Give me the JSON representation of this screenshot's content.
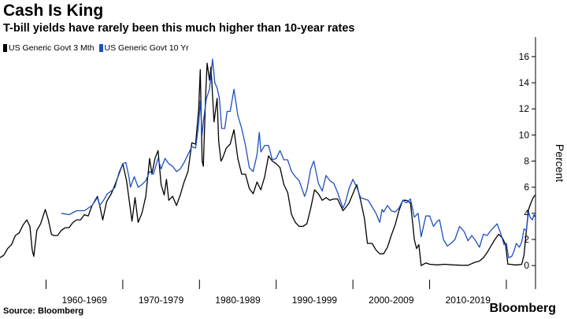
{
  "title": "Cash Is King",
  "subtitle": "T-bill yields have rarely been this much higher than 10-year rates",
  "source": "Source: Bloomberg",
  "brand": "Bloomberg",
  "chart_data": {
    "type": "line",
    "title": "Cash Is King",
    "ylabel": "Percent",
    "ylim": [
      -1.8,
      17.5
    ],
    "xlim": [
      1954.0,
      2023.8
    ],
    "yticks": [
      0,
      2,
      4,
      6,
      8,
      10,
      12,
      14,
      16
    ],
    "xtick_labels": [
      "1960-1969",
      "1970-1979",
      "1980-1989",
      "1990-1999",
      "2000-2009",
      "2010-2019"
    ],
    "xtick_dividers": [
      1960,
      1970,
      1980,
      1990,
      2000,
      2010,
      2020
    ],
    "grid": false,
    "legend_position": "top-left",
    "series": [
      {
        "name": "US Generic Govt 3 Mth",
        "color": "#000000",
        "points": [
          [
            1954.0,
            0.6
          ],
          [
            1954.5,
            0.8
          ],
          [
            1955.0,
            1.3
          ],
          [
            1955.5,
            1.6
          ],
          [
            1956.0,
            2.3
          ],
          [
            1956.5,
            2.5
          ],
          [
            1957.0,
            3.1
          ],
          [
            1957.5,
            3.5
          ],
          [
            1957.9,
            3.0
          ],
          [
            1958.2,
            1.2
          ],
          [
            1958.4,
            0.7
          ],
          [
            1958.8,
            2.7
          ],
          [
            1959.3,
            3.2
          ],
          [
            1959.9,
            4.3
          ],
          [
            1960.3,
            3.5
          ],
          [
            1960.7,
            2.4
          ],
          [
            1961.0,
            2.3
          ],
          [
            1961.5,
            2.3
          ],
          [
            1962.0,
            2.7
          ],
          [
            1962.5,
            2.9
          ],
          [
            1963.0,
            2.9
          ],
          [
            1963.5,
            3.3
          ],
          [
            1964.0,
            3.5
          ],
          [
            1964.5,
            3.5
          ],
          [
            1965.0,
            3.9
          ],
          [
            1965.5,
            3.8
          ],
          [
            1966.0,
            4.6
          ],
          [
            1966.7,
            5.3
          ],
          [
            1967.0,
            4.6
          ],
          [
            1967.4,
            3.5
          ],
          [
            1967.9,
            4.9
          ],
          [
            1968.5,
            5.5
          ],
          [
            1969.0,
            6.2
          ],
          [
            1969.5,
            7.0
          ],
          [
            1970.0,
            7.8
          ],
          [
            1970.5,
            6.5
          ],
          [
            1971.0,
            4.3
          ],
          [
            1971.2,
            3.4
          ],
          [
            1971.6,
            5.2
          ],
          [
            1972.0,
            3.3
          ],
          [
            1972.5,
            4.0
          ],
          [
            1973.0,
            5.3
          ],
          [
            1973.5,
            8.2
          ],
          [
            1973.8,
            7.0
          ],
          [
            1974.2,
            8.2
          ],
          [
            1974.6,
            8.8
          ],
          [
            1975.0,
            6.2
          ],
          [
            1975.4,
            5.4
          ],
          [
            1975.7,
            6.6
          ],
          [
            1976.0,
            5.0
          ],
          [
            1976.5,
            5.3
          ],
          [
            1977.0,
            4.6
          ],
          [
            1977.5,
            5.4
          ],
          [
            1978.0,
            6.4
          ],
          [
            1978.5,
            7.2
          ],
          [
            1979.0,
            9.4
          ],
          [
            1979.5,
            9.3
          ],
          [
            1979.9,
            12.0
          ],
          [
            1980.1,
            15.0
          ],
          [
            1980.35,
            8.0
          ],
          [
            1980.5,
            7.6
          ],
          [
            1980.8,
            13.0
          ],
          [
            1981.0,
            15.5
          ],
          [
            1981.3,
            14.2
          ],
          [
            1981.5,
            15.2
          ],
          [
            1981.9,
            11.0
          ],
          [
            1982.3,
            12.8
          ],
          [
            1982.5,
            9.5
          ],
          [
            1982.8,
            8.0
          ],
          [
            1983.0,
            8.2
          ],
          [
            1983.5,
            9.0
          ],
          [
            1984.0,
            9.3
          ],
          [
            1984.5,
            10.4
          ],
          [
            1985.0,
            8.2
          ],
          [
            1985.5,
            7.0
          ],
          [
            1986.0,
            7.0
          ],
          [
            1986.5,
            5.9
          ],
          [
            1987.0,
            5.5
          ],
          [
            1987.5,
            6.4
          ],
          [
            1988.0,
            5.8
          ],
          [
            1988.5,
            6.8
          ],
          [
            1989.0,
            8.4
          ],
          [
            1989.5,
            8.0
          ],
          [
            1990.0,
            7.8
          ],
          [
            1990.5,
            7.5
          ],
          [
            1991.0,
            6.2
          ],
          [
            1991.5,
            5.6
          ],
          [
            1992.0,
            3.9
          ],
          [
            1992.5,
            3.3
          ],
          [
            1993.0,
            3.0
          ],
          [
            1993.5,
            3.0
          ],
          [
            1994.0,
            3.2
          ],
          [
            1994.5,
            4.4
          ],
          [
            1995.0,
            5.8
          ],
          [
            1995.5,
            5.5
          ],
          [
            1996.0,
            5.0
          ],
          [
            1996.5,
            5.2
          ],
          [
            1997.0,
            5.0
          ],
          [
            1997.5,
            5.1
          ],
          [
            1998.0,
            5.1
          ],
          [
            1998.7,
            4.2
          ],
          [
            1999.0,
            4.4
          ],
          [
            1999.5,
            4.8
          ],
          [
            2000.0,
            5.5
          ],
          [
            2000.5,
            6.2
          ],
          [
            2001.0,
            5.0
          ],
          [
            2001.5,
            3.6
          ],
          [
            2001.9,
            1.7
          ],
          [
            2002.5,
            1.7
          ],
          [
            2003.0,
            1.2
          ],
          [
            2003.5,
            0.9
          ],
          [
            2004.0,
            0.9
          ],
          [
            2004.5,
            1.4
          ],
          [
            2005.0,
            2.3
          ],
          [
            2005.5,
            3.1
          ],
          [
            2006.0,
            4.2
          ],
          [
            2006.5,
            5.0
          ],
          [
            2007.0,
            5.0
          ],
          [
            2007.5,
            4.8
          ],
          [
            2007.8,
            3.2
          ],
          [
            2008.0,
            2.0
          ],
          [
            2008.3,
            1.3
          ],
          [
            2008.6,
            1.6
          ],
          [
            2008.9,
            0.0
          ],
          [
            2009.5,
            0.2
          ],
          [
            2010.0,
            0.1
          ],
          [
            2011.0,
            0.05
          ],
          [
            2012.0,
            0.1
          ],
          [
            2013.0,
            0.05
          ],
          [
            2014.0,
            0.03
          ],
          [
            2015.0,
            0.02
          ],
          [
            2015.9,
            0.25
          ],
          [
            2016.5,
            0.35
          ],
          [
            2017.0,
            0.6
          ],
          [
            2017.5,
            1.0
          ],
          [
            2018.0,
            1.5
          ],
          [
            2018.5,
            2.0
          ],
          [
            2019.0,
            2.4
          ],
          [
            2019.5,
            2.1
          ],
          [
            2019.9,
            1.6
          ],
          [
            2020.2,
            0.1
          ],
          [
            2020.5,
            0.1
          ],
          [
            2021.0,
            0.05
          ],
          [
            2021.5,
            0.05
          ],
          [
            2022.0,
            0.1
          ],
          [
            2022.3,
            0.8
          ],
          [
            2022.6,
            2.6
          ],
          [
            2022.9,
            4.3
          ],
          [
            2023.2,
            4.8
          ],
          [
            2023.5,
            5.2
          ],
          [
            2023.75,
            5.4
          ]
        ]
      },
      {
        "name": "US Generic Govt 10 Yr",
        "color": "#1f4fbf",
        "points": [
          [
            1962.0,
            4.0
          ],
          [
            1963.0,
            3.9
          ],
          [
            1964.0,
            4.2
          ],
          [
            1965.0,
            4.2
          ],
          [
            1966.0,
            4.6
          ],
          [
            1966.7,
            5.2
          ],
          [
            1967.0,
            4.6
          ],
          [
            1967.5,
            5.0
          ],
          [
            1968.0,
            5.5
          ],
          [
            1968.5,
            5.7
          ],
          [
            1969.0,
            6.0
          ],
          [
            1969.5,
            7.1
          ],
          [
            1970.0,
            7.8
          ],
          [
            1970.4,
            7.9
          ],
          [
            1970.8,
            6.8
          ],
          [
            1971.0,
            6.0
          ],
          [
            1971.5,
            6.8
          ],
          [
            1972.0,
            6.0
          ],
          [
            1972.5,
            6.2
          ],
          [
            1973.0,
            6.5
          ],
          [
            1973.5,
            7.2
          ],
          [
            1974.0,
            7.0
          ],
          [
            1974.6,
            8.2
          ],
          [
            1975.0,
            7.4
          ],
          [
            1975.5,
            8.2
          ],
          [
            1976.0,
            7.8
          ],
          [
            1976.5,
            7.6
          ],
          [
            1977.0,
            7.2
          ],
          [
            1977.5,
            7.4
          ],
          [
            1978.0,
            7.9
          ],
          [
            1978.5,
            8.5
          ],
          [
            1979.0,
            9.1
          ],
          [
            1979.5,
            9.0
          ],
          [
            1979.9,
            10.8
          ],
          [
            1980.1,
            12.6
          ],
          [
            1980.35,
            10.0
          ],
          [
            1980.5,
            11.0
          ],
          [
            1980.9,
            12.8
          ],
          [
            1981.3,
            13.5
          ],
          [
            1981.7,
            15.8
          ],
          [
            1982.0,
            14.0
          ],
          [
            1982.3,
            13.6
          ],
          [
            1982.6,
            12.8
          ],
          [
            1982.9,
            10.5
          ],
          [
            1983.3,
            10.5
          ],
          [
            1983.6,
            11.8
          ],
          [
            1984.0,
            11.8
          ],
          [
            1984.5,
            13.5
          ],
          [
            1985.0,
            11.5
          ],
          [
            1985.5,
            10.5
          ],
          [
            1986.0,
            9.2
          ],
          [
            1986.5,
            7.5
          ],
          [
            1987.0,
            7.2
          ],
          [
            1987.5,
            8.5
          ],
          [
            1987.8,
            10.2
          ],
          [
            1988.0,
            8.7
          ],
          [
            1988.5,
            9.2
          ],
          [
            1989.0,
            9.2
          ],
          [
            1989.5,
            8.1
          ],
          [
            1990.0,
            8.2
          ],
          [
            1990.5,
            8.8
          ],
          [
            1991.0,
            8.1
          ],
          [
            1991.5,
            8.1
          ],
          [
            1992.0,
            7.2
          ],
          [
            1992.5,
            6.8
          ],
          [
            1993.0,
            6.5
          ],
          [
            1993.7,
            5.3
          ],
          [
            1994.0,
            5.8
          ],
          [
            1994.5,
            7.4
          ],
          [
            1994.9,
            8.0
          ],
          [
            1995.5,
            6.3
          ],
          [
            1996.0,
            5.7
          ],
          [
            1996.5,
            6.9
          ],
          [
            1997.0,
            6.5
          ],
          [
            1997.5,
            6.3
          ],
          [
            1998.0,
            5.6
          ],
          [
            1998.7,
            4.4
          ],
          [
            1999.0,
            4.8
          ],
          [
            1999.5,
            5.9
          ],
          [
            2000.0,
            6.6
          ],
          [
            2000.5,
            6.0
          ],
          [
            2001.0,
            5.2
          ],
          [
            2001.5,
            5.1
          ],
          [
            2002.0,
            5.0
          ],
          [
            2002.5,
            4.5
          ],
          [
            2003.0,
            4.0
          ],
          [
            2003.5,
            3.3
          ],
          [
            2003.8,
            4.3
          ],
          [
            2004.0,
            4.1
          ],
          [
            2004.5,
            4.6
          ],
          [
            2005.0,
            4.2
          ],
          [
            2005.5,
            4.1
          ],
          [
            2006.0,
            4.4
          ],
          [
            2006.5,
            5.0
          ],
          [
            2007.0,
            4.8
          ],
          [
            2007.5,
            5.1
          ],
          [
            2008.0,
            3.7
          ],
          [
            2008.5,
            4.0
          ],
          [
            2008.9,
            2.2
          ],
          [
            2009.5,
            3.8
          ],
          [
            2010.0,
            3.8
          ],
          [
            2010.5,
            3.0
          ],
          [
            2011.0,
            3.4
          ],
          [
            2011.3,
            3.5
          ],
          [
            2011.8,
            2.0
          ],
          [
            2012.3,
            1.5
          ],
          [
            2012.8,
            1.7
          ],
          [
            2013.3,
            2.0
          ],
          [
            2013.9,
            3.0
          ],
          [
            2014.5,
            2.6
          ],
          [
            2015.0,
            1.9
          ],
          [
            2015.5,
            2.3
          ],
          [
            2016.0,
            1.9
          ],
          [
            2016.5,
            1.4
          ],
          [
            2017.0,
            2.4
          ],
          [
            2017.5,
            2.3
          ],
          [
            2018.0,
            2.7
          ],
          [
            2018.8,
            3.2
          ],
          [
            2019.3,
            2.4
          ],
          [
            2019.7,
            1.6
          ],
          [
            2020.0,
            1.7
          ],
          [
            2020.3,
            0.6
          ],
          [
            2020.7,
            0.7
          ],
          [
            2021.0,
            1.1
          ],
          [
            2021.3,
            1.7
          ],
          [
            2021.7,
            1.4
          ],
          [
            2022.0,
            1.8
          ],
          [
            2022.3,
            2.8
          ],
          [
            2022.6,
            2.7
          ],
          [
            2022.9,
            4.1
          ],
          [
            2023.1,
            3.7
          ],
          [
            2023.4,
            3.5
          ],
          [
            2023.6,
            3.9
          ],
          [
            2023.75,
            3.7
          ]
        ]
      }
    ]
  }
}
